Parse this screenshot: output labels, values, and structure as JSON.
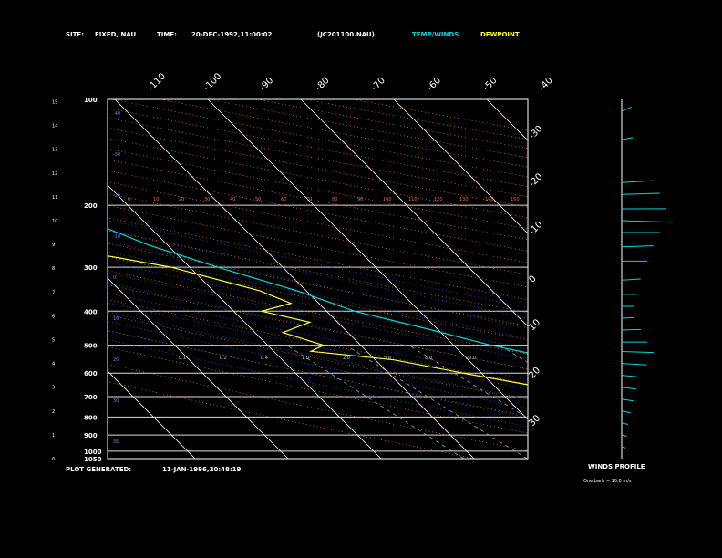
{
  "header": {
    "site_label": "SITE:",
    "site_value": "FIXED, NAU",
    "time_label": "TIME:",
    "time_value": "20-DEC-1992,11:00:02",
    "file": "(JC201100.NAU)",
    "temp_legend": "TEMP/WINDS",
    "dew_legend": "DEWPOINT"
  },
  "footer": {
    "generated_label": "PLOT GENERATED:",
    "generated_value": "11-JAN-1996,20:48:19"
  },
  "winds_panel": {
    "title": "WINDS PROFILE",
    "note": "One barb = 10.0 m/s"
  },
  "colors": {
    "background": "#000000",
    "frame": "#ffffff",
    "temp": "#00d8d8",
    "dewpoint": "#ffff33",
    "isotherm": "#ffffff",
    "dry_adiabat": "#e07030",
    "moist_adiabat": "#3050e0",
    "mixing_ratio": "#a0a0a0",
    "wind": "#00d8d8"
  },
  "chart_data": {
    "type": "line",
    "ylabel_scale": "log-pressure",
    "pressure_levels": [
      "100",
      "200",
      "300",
      "400",
      "500",
      "600",
      "700",
      "800",
      "900",
      "1000",
      "1050"
    ],
    "height_km_ticks": [
      "0",
      "1",
      "2",
      "3",
      "4",
      "5",
      "6",
      "7",
      "8",
      "9",
      "10",
      "11",
      "12",
      "13",
      "14",
      "15"
    ],
    "isotherm_top_labels": [
      "-110",
      "-100",
      "-90",
      "-80",
      "-70",
      "-60",
      "-50",
      "-40"
    ],
    "isotherm_side_labels": [
      "-30",
      "-20",
      "-10",
      "0",
      "10",
      "20",
      "30"
    ],
    "dry_adiabat_labels": [
      "0",
      "10",
      "20",
      "30",
      "40",
      "50",
      "60",
      "70",
      "80",
      "90",
      "100",
      "110",
      "120",
      "130",
      "140",
      "150"
    ],
    "moist_adiabat_labels": [
      "-40",
      "-30",
      "-20",
      "-10",
      "0",
      "10",
      "20",
      "30",
      "35"
    ],
    "mixing_ratio_labels": [
      "0.1",
      "0.2",
      "0.4",
      "1.0",
      "2.0",
      "5.0",
      "8.0",
      "20.0"
    ],
    "axis_range": {
      "t_min": -40,
      "t_max": 50,
      "p_top": 100,
      "p_bottom": 1050
    },
    "series": [
      {
        "name": "TEMP/WINDS",
        "pressure": [
          100,
          150,
          200,
          230,
          260,
          300,
          350,
          400,
          450,
          500,
          550,
          600,
          650,
          700,
          750,
          800,
          850,
          900,
          950,
          1000,
          1013
        ],
        "temp_c": [
          -72,
          -66,
          -59,
          -55,
          -52,
          -47,
          -41,
          -37,
          -31,
          -26,
          -20,
          -15,
          -11,
          -6,
          -3,
          1,
          4,
          7,
          10,
          13,
          14
        ]
      },
      {
        "name": "DEWPOINT",
        "pressure": [
          100,
          120,
          150,
          180,
          200,
          220,
          250,
          270,
          300,
          350,
          380,
          400,
          430,
          460,
          500,
          520,
          550,
          600,
          650,
          700,
          750,
          800,
          850,
          900,
          950,
          1000,
          1013
        ],
        "temp_c": [
          -82,
          -79,
          -74,
          -72,
          -74,
          -72,
          -65,
          -60,
          -52,
          -45,
          -43,
          -47,
          -43,
          -47,
          -44,
          -46,
          -38,
          -32,
          -26,
          -19,
          -15,
          -11,
          -6,
          -3,
          0,
          3,
          4
        ]
      }
    ],
    "winds": [
      {
        "height_km": 14.6,
        "speed_ms": 12,
        "dir_deg": 320
      },
      {
        "height_km": 13.4,
        "speed_ms": 10,
        "dir_deg": 300
      },
      {
        "height_km": 11.6,
        "speed_ms": 25,
        "dir_deg": 280
      },
      {
        "height_km": 11.1,
        "speed_ms": 30,
        "dir_deg": 275
      },
      {
        "height_km": 10.5,
        "speed_ms": 35,
        "dir_deg": 270
      },
      {
        "height_km": 10.0,
        "speed_ms": 40,
        "dir_deg": 265
      },
      {
        "height_km": 9.5,
        "speed_ms": 30,
        "dir_deg": 270
      },
      {
        "height_km": 8.9,
        "speed_ms": 25,
        "dir_deg": 275
      },
      {
        "height_km": 8.3,
        "speed_ms": 20,
        "dir_deg": 270
      },
      {
        "height_km": 7.5,
        "speed_ms": 15,
        "dir_deg": 280
      },
      {
        "height_km": 6.9,
        "speed_ms": 12,
        "dir_deg": 270
      },
      {
        "height_km": 6.4,
        "speed_ms": 10,
        "dir_deg": 270
      },
      {
        "height_km": 5.9,
        "speed_ms": 10,
        "dir_deg": 280
      },
      {
        "height_km": 5.4,
        "speed_ms": 15,
        "dir_deg": 275
      },
      {
        "height_km": 4.9,
        "speed_ms": 20,
        "dir_deg": 270
      },
      {
        "height_km": 4.5,
        "speed_ms": 25,
        "dir_deg": 265
      },
      {
        "height_km": 4.0,
        "speed_ms": 20,
        "dir_deg": 260
      },
      {
        "height_km": 3.5,
        "speed_ms": 15,
        "dir_deg": 255
      },
      {
        "height_km": 3.0,
        "speed_ms": 12,
        "dir_deg": 250
      },
      {
        "height_km": 2.5,
        "speed_ms": 10,
        "dir_deg": 245
      },
      {
        "height_km": 2.0,
        "speed_ms": 8,
        "dir_deg": 240
      },
      {
        "height_km": 1.5,
        "speed_ms": 6,
        "dir_deg": 235
      },
      {
        "height_km": 1.0,
        "speed_ms": 5,
        "dir_deg": 230
      },
      {
        "height_km": 0.5,
        "speed_ms": 4,
        "dir_deg": 225
      }
    ]
  }
}
